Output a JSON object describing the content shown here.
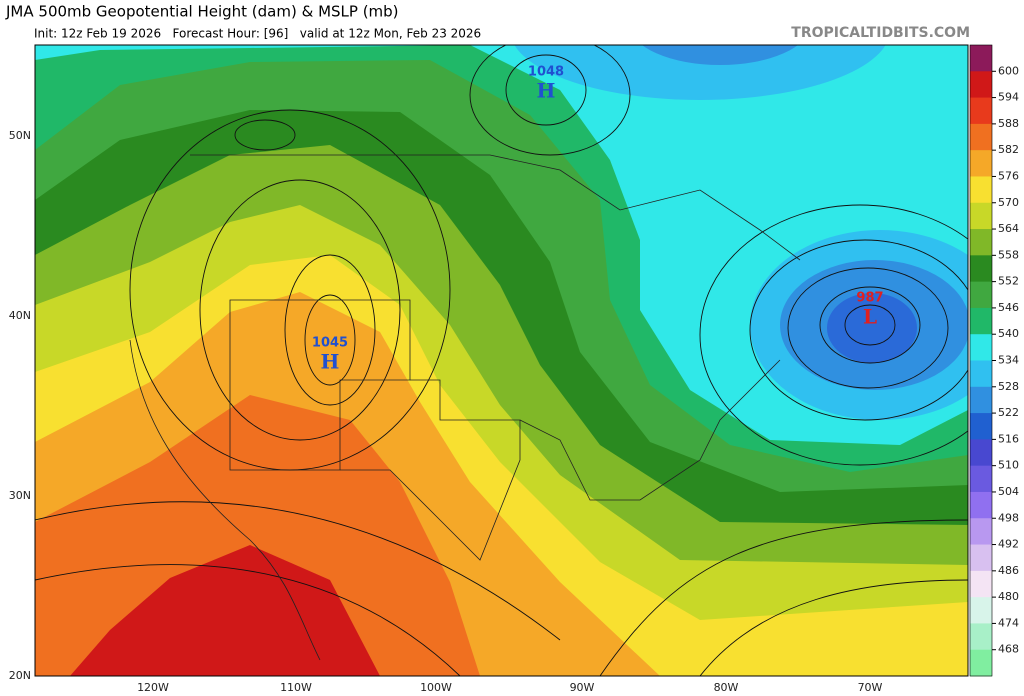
{
  "header": {
    "title": "JMA 500mb Geopotential Height (dam) & MSLP (mb)",
    "subtitle": "Init: 12z Feb 19 2026   Forecast Hour: [96]   valid at 12z Mon, Feb 23 2026",
    "watermark": "TROPICALTIDBITS.COM"
  },
  "map": {
    "latitude_labels": [
      "50N",
      "40N",
      "30N",
      "20N"
    ],
    "longitude_labels": [
      "120W",
      "110W",
      "100W",
      "90W",
      "80W",
      "70W"
    ],
    "pressure_centers": [
      {
        "value": "1048",
        "symbol": "H",
        "color": "#2050d0"
      },
      {
        "value": "1045",
        "symbol": "H",
        "color": "#2050d0"
      },
      {
        "value": "987",
        "symbol": "L",
        "color": "#e02020"
      }
    ]
  },
  "colorbar": {
    "labels": [
      600,
      594,
      588,
      582,
      576,
      570,
      564,
      558,
      552,
      546,
      540,
      534,
      528,
      522,
      516,
      510,
      504,
      498,
      492,
      486,
      480,
      474,
      468
    ],
    "colors": [
      "#8c1a5a",
      "#d01818",
      "#e83a1c",
      "#f07020",
      "#f5a828",
      "#f8e030",
      "#c8d828",
      "#80b828",
      "#2a8a20",
      "#40a840",
      "#20b868",
      "#30e8e8",
      "#30c0f0",
      "#3090e0",
      "#2060d0",
      "#4848d0",
      "#6a5ae0",
      "#9070f0",
      "#b898f0",
      "#d8c0f0",
      "#f4e4f4",
      "#d8f4ea",
      "#a8f0c8",
      "#80eea0"
    ]
  }
}
